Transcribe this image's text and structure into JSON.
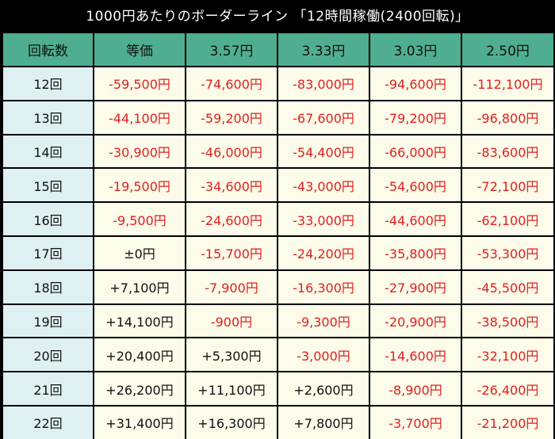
{
  "title": "1000円あたりのボーダーライン 「12時間稼働(2400回転)」",
  "colors": {
    "background": "#000000",
    "header_bg": "#4fae92",
    "row_header_bg": "#def0f2",
    "cell_bg": "#fdfbe9",
    "negative_text": "#e02020",
    "positive_text": "#111111"
  },
  "table": {
    "headers": [
      "回転数",
      "等価",
      "3.57円",
      "3.33円",
      "3.03円",
      "2.50円"
    ],
    "rows": [
      {
        "label": "12回",
        "values": [
          "-59,500円",
          "-74,600円",
          "-83,000円",
          "-94,600円",
          "-112,100円"
        ]
      },
      {
        "label": "13回",
        "values": [
          "-44,100円",
          "-59,200円",
          "-67,600円",
          "-79,200円",
          "-96,800円"
        ]
      },
      {
        "label": "14回",
        "values": [
          "-30,900円",
          "-46,000円",
          "-54,400円",
          "-66,000円",
          "-83,600円"
        ]
      },
      {
        "label": "15回",
        "values": [
          "-19,500円",
          "-34,600円",
          "-43,000円",
          "-54,600円",
          "-72,100円"
        ]
      },
      {
        "label": "16回",
        "values": [
          "-9,500円",
          "-24,600円",
          "-33,000円",
          "-44,600円",
          "-62,100円"
        ]
      },
      {
        "label": "17回",
        "values": [
          "±0円",
          "-15,700円",
          "-24,200円",
          "-35,800円",
          "-53,300円"
        ]
      },
      {
        "label": "18回",
        "values": [
          "+7,100円",
          "-7,900円",
          "-16,300円",
          "-27,900円",
          "-45,500円"
        ]
      },
      {
        "label": "19回",
        "values": [
          "+14,100円",
          "-900円",
          "-9,300円",
          "-20,900円",
          "-38,500円"
        ]
      },
      {
        "label": "20回",
        "values": [
          "+20,400円",
          "+5,300円",
          "-3,000円",
          "-14,600円",
          "-32,100円"
        ]
      },
      {
        "label": "21回",
        "values": [
          "+26,200円",
          "+11,100円",
          "+2,600円",
          "-8,900円",
          "-26,400円"
        ]
      },
      {
        "label": "22回",
        "values": [
          "+31,400円",
          "+16,300円",
          "+7,800円",
          "-3,700円",
          "-21,200円"
        ]
      }
    ]
  }
}
